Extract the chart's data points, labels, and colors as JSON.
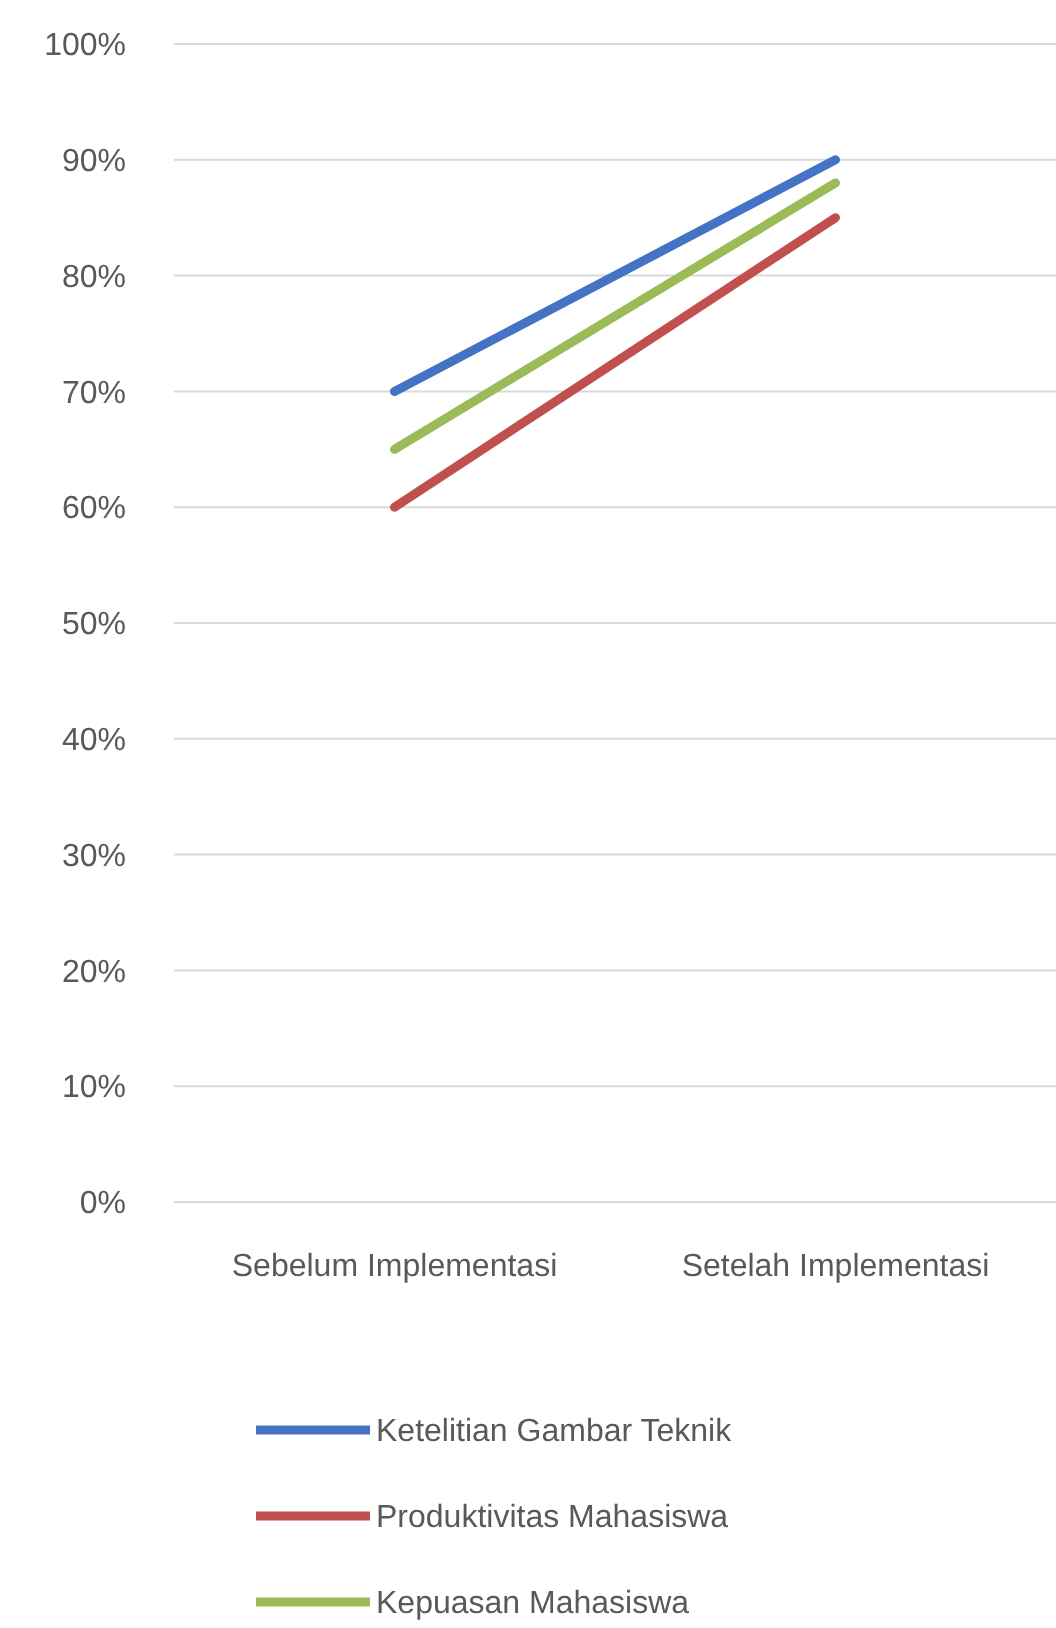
{
  "chart_data": {
    "type": "line",
    "categories": [
      "Sebelum Implementasi",
      "Setelah Implementasi"
    ],
    "series": [
      {
        "name": "Ketelitian Gambar Teknik",
        "color": "#4472c4",
        "values": [
          0.7,
          0.9
        ]
      },
      {
        "name": "Produktivitas Mahasiswa",
        "color": "#c0504d",
        "values": [
          0.6,
          0.85
        ]
      },
      {
        "name": "Kepuasan Mahasiswa",
        "color": "#9bbb59",
        "values": [
          0.65,
          0.88
        ]
      }
    ],
    "ylim": [
      0,
      1
    ],
    "yticks": [
      {
        "value": 0,
        "label": "0%"
      },
      {
        "value": 0.1,
        "label": "10%"
      },
      {
        "value": 0.2,
        "label": "20%"
      },
      {
        "value": 0.3,
        "label": "30%"
      },
      {
        "value": 0.4,
        "label": "40%"
      },
      {
        "value": 0.5,
        "label": "50%"
      },
      {
        "value": 0.6,
        "label": "60%"
      },
      {
        "value": 0.7,
        "label": "70%"
      },
      {
        "value": 0.8,
        "label": "80%"
      },
      {
        "value": 0.9,
        "label": "90%"
      },
      {
        "value": 1,
        "label": "100%"
      }
    ],
    "grid": "y",
    "legend": "bottom",
    "marker": "none",
    "line_style": "solid"
  }
}
